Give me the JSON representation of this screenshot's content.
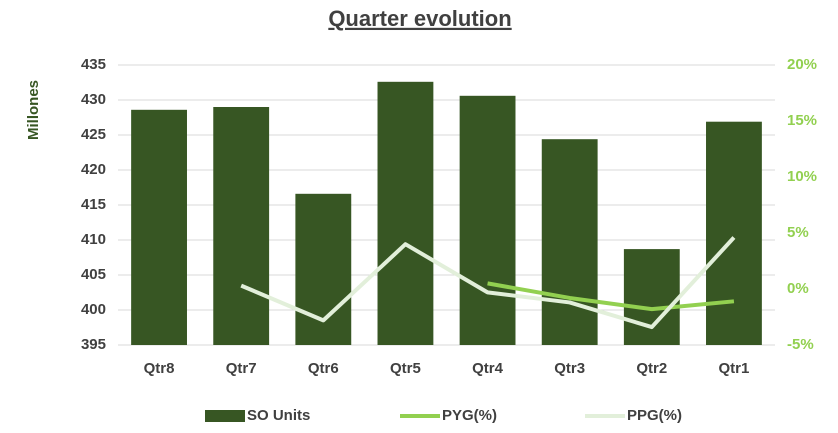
{
  "chart_data": {
    "type": "bar",
    "title": "Quarter evolution",
    "y_label": "Millones",
    "categories": [
      "Qtr8",
      "Qtr7",
      "Qtr6",
      "Qtr5",
      "Qtr4",
      "Qtr3",
      "Qtr2",
      "Qtr1"
    ],
    "series": [
      {
        "name": "SO Units",
        "type": "bar",
        "color": "#375623",
        "values": [
          428.6,
          429,
          416.6,
          432.6,
          430.6,
          424.4,
          408.7,
          426.9
        ]
      },
      {
        "name": "PYG(%)",
        "type": "line",
        "axis": "y2",
        "color": "#92d050",
        "values": [
          null,
          null,
          null,
          null,
          0.5,
          -0.8,
          -1.8,
          -1.1
        ]
      },
      {
        "name": "PPG(%)",
        "type": "line",
        "axis": "y2",
        "color": "#e2efda",
        "values": [
          null,
          0.3,
          -2.8,
          4.0,
          -0.3,
          -1.2,
          -3.4,
          4.6
        ]
      }
    ],
    "ylim": [
      395,
      435
    ],
    "yticks": [
      395,
      400,
      405,
      410,
      415,
      420,
      425,
      430,
      435
    ],
    "y2lim": [
      -5,
      20
    ],
    "y2ticks": [
      {
        "value": -5,
        "label": "-5%"
      },
      {
        "value": 0,
        "label": "0%"
      },
      {
        "value": 5,
        "label": "5%"
      },
      {
        "value": 10,
        "label": "10%"
      },
      {
        "value": 15,
        "label": "15%"
      },
      {
        "value": 20,
        "label": "20%"
      }
    ],
    "grid": true,
    "legend": "bottom"
  }
}
